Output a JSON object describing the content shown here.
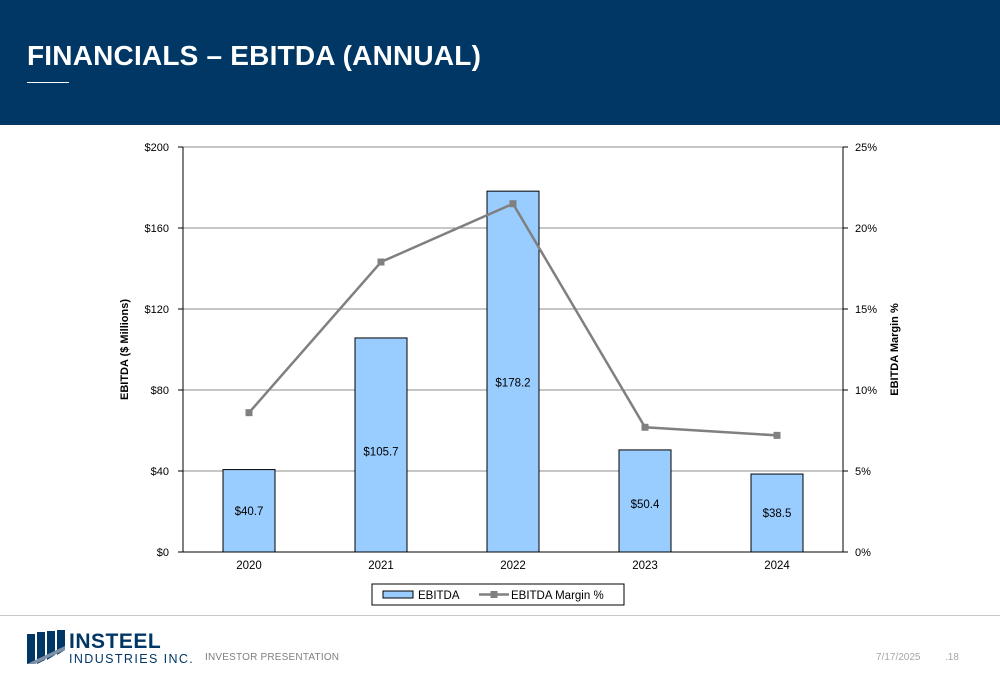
{
  "header": {
    "title": "FINANCIALS – EBITDA (ANNUAL)",
    "background_color": "#003764"
  },
  "chart_data": {
    "type": "bar",
    "categories": [
      "2020",
      "2021",
      "2022",
      "2023",
      "2024"
    ],
    "series": [
      {
        "name": "EBITDA",
        "kind": "bar",
        "axis": "left",
        "color": "#99ccff",
        "values": [
          40.7,
          105.7,
          178.2,
          50.4,
          38.5
        ],
        "data_labels": [
          "$40.7",
          "$105.7",
          "$178.2",
          "$50.4",
          "$38.5"
        ]
      },
      {
        "name": "EBITDA Margin %",
        "kind": "line",
        "axis": "right",
        "color": "#808080",
        "marker": "square",
        "values": [
          8.6,
          17.9,
          21.5,
          7.7,
          7.2
        ]
      }
    ],
    "ylabel": "EBITDA ($ Millions)",
    "y2label": "EBITDA Margin %",
    "ylim": [
      0,
      200
    ],
    "y2lim": [
      0,
      25
    ],
    "yticks": [
      "$0",
      "$40",
      "$80",
      "$120",
      "$160",
      "$200"
    ],
    "y2ticks": [
      "0%",
      "5%",
      "10%",
      "15%",
      "20%",
      "25%"
    ],
    "grid": true,
    "legend_position": "bottom"
  },
  "footer": {
    "logo_name": "INSTEEL",
    "logo_sub": "INDUSTRIES INC.",
    "label": "INVESTOR PRESENTATION",
    "date": "7/17/2025",
    "page": ".18"
  }
}
